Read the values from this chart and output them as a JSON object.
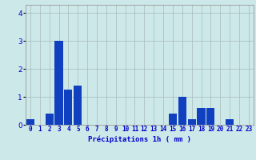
{
  "values": [
    0.2,
    0.0,
    0.4,
    3.0,
    1.25,
    1.4,
    0.0,
    0.0,
    0.0,
    0.0,
    0.0,
    0.0,
    0.0,
    0.0,
    0.0,
    0.4,
    1.0,
    0.2,
    0.6,
    0.6,
    0.0,
    0.2,
    0.0,
    0.0
  ],
  "categories": [
    0,
    1,
    2,
    3,
    4,
    5,
    6,
    7,
    8,
    9,
    10,
    11,
    12,
    13,
    14,
    15,
    16,
    17,
    18,
    19,
    20,
    21,
    22,
    23
  ],
  "bar_color": "#1040c0",
  "xlabel": "Précipitations 1h ( mm )",
  "ylim": [
    0,
    4.3
  ],
  "yticks": [
    0,
    1,
    2,
    3,
    4
  ],
  "background_color": "#cce8e8",
  "grid_color": "#aababa",
  "xlabel_fontsize": 6.5,
  "tick_fontsize": 5.5,
  "tick_color": "#0000cc",
  "xlabel_color": "#0000cc"
}
